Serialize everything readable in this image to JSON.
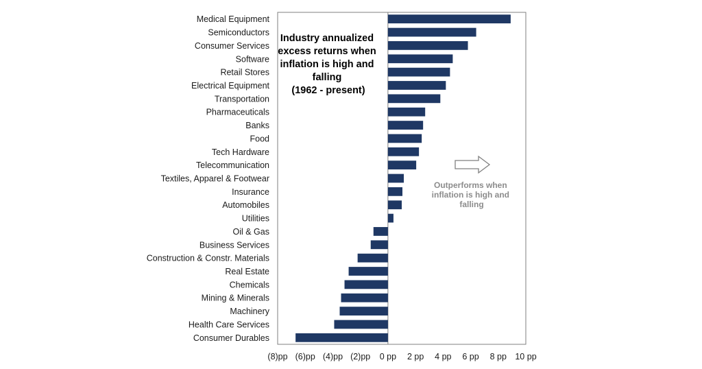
{
  "chart_data": {
    "type": "bar",
    "orientation": "horizontal",
    "title_lines": [
      "Industry annualized",
      "excess returns when",
      "inflation is high and",
      "falling",
      "(1962 - present)"
    ],
    "categories": [
      "Medical Equipment",
      "Semiconductors",
      "Consumer Services",
      "Software",
      "Retail Stores",
      "Electrical Equipment",
      "Transportation",
      "Pharmaceuticals",
      "Banks",
      "Food",
      "Tech Hardware",
      "Telecommunication",
      "Textiles, Apparel & Footwear",
      "Insurance",
      "Automobiles",
      "Utilities",
      "Oil & Gas",
      "Business Services",
      "Construction & Constr. Materials",
      "Real Estate",
      "Chemicals",
      "Mining & Minerals",
      "Machinery",
      "Health Care Services",
      "Consumer Durables"
    ],
    "values": [
      8.9,
      6.4,
      5.8,
      4.7,
      4.5,
      4.2,
      3.8,
      2.7,
      2.55,
      2.45,
      2.25,
      2.05,
      1.15,
      1.05,
      1.0,
      0.4,
      -1.05,
      -1.25,
      -2.2,
      -2.85,
      -3.15,
      -3.4,
      -3.5,
      -3.9,
      -6.7
    ],
    "xlim": [
      -8,
      10
    ],
    "x_ticks": [
      -8,
      -6,
      -4,
      -2,
      0,
      2,
      4,
      6,
      8,
      10
    ],
    "x_tick_labels": [
      "(8)pp",
      "(6)pp",
      "(4)pp",
      "(2)pp",
      "0 pp",
      "2 pp",
      "4 pp",
      "6 pp",
      "8 pp",
      "10 pp"
    ],
    "unit": "pp",
    "bar_color": "#1f3864",
    "annotation": {
      "lines": [
        "Outperforms when",
        "inflation is high and",
        "falling"
      ],
      "color": "#8c8c8c",
      "arrow": "right-arrow-icon"
    }
  }
}
